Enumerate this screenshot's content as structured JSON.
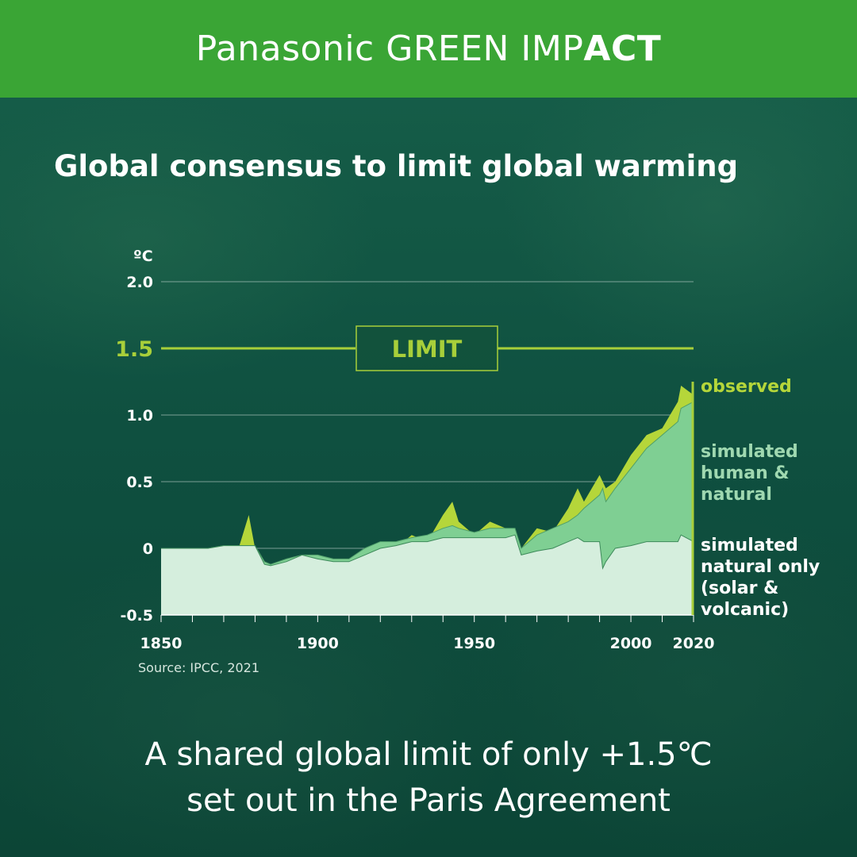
{
  "header": {
    "brand_light": "Panasonic GREEN IMP",
    "brand_bold": "ACT"
  },
  "title": "Global consensus to limit global warming",
  "source": "Source: IPCC, 2021",
  "caption": {
    "line1": "A shared global limit of only +1.5℃",
    "line2": "set out in the Paris Agreement"
  },
  "colors": {
    "header": "#3aa535",
    "observed": "#b5d63a",
    "human_natural": "#7fcf93",
    "natural_only": "#d5eedd",
    "limit": "#a8cf3a"
  },
  "chart_data": {
    "type": "area",
    "ylabel": "ºC",
    "ylim": [
      -0.5,
      2.0
    ],
    "xlim": [
      1850,
      2020
    ],
    "x_ticks": [
      "1850",
      "1900",
      "1950",
      "2000",
      "2020"
    ],
    "y_ticks": [
      "2.0",
      "1.5",
      "1.0",
      "0.5",
      "0",
      "-0.5"
    ],
    "grid": true,
    "limit": {
      "value": 1.5,
      "label": "LIMIT",
      "tick_label": "1.5"
    },
    "x": [
      1850,
      1855,
      1860,
      1865,
      1870,
      1875,
      1878,
      1880,
      1883,
      1885,
      1890,
      1895,
      1900,
      1905,
      1910,
      1915,
      1920,
      1925,
      1930,
      1935,
      1940,
      1943,
      1945,
      1950,
      1955,
      1960,
      1963,
      1965,
      1970,
      1975,
      1980,
      1983,
      1985,
      1990,
      1991,
      1992,
      1995,
      2000,
      2005,
      2010,
      2015,
      2016,
      2020
    ],
    "series": [
      {
        "name": "observed",
        "values": [
          -0.05,
          -0.02,
          -0.05,
          -0.03,
          0.0,
          0.02,
          0.25,
          0.0,
          -0.1,
          -0.15,
          -0.1,
          -0.05,
          -0.05,
          -0.15,
          -0.2,
          -0.1,
          -0.02,
          0.0,
          0.1,
          0.05,
          0.25,
          0.35,
          0.2,
          0.1,
          0.2,
          0.15,
          0.15,
          0.0,
          0.15,
          0.12,
          0.3,
          0.45,
          0.35,
          0.55,
          0.5,
          0.45,
          0.5,
          0.7,
          0.85,
          0.9,
          1.1,
          1.22,
          1.15
        ]
      },
      {
        "name": "simulated human & natural",
        "values": [
          0.0,
          0.0,
          0.0,
          0.0,
          0.02,
          0.02,
          0.02,
          0.02,
          -0.1,
          -0.12,
          -0.08,
          -0.05,
          -0.05,
          -0.08,
          -0.08,
          0.0,
          0.05,
          0.05,
          0.08,
          0.1,
          0.15,
          0.17,
          0.15,
          0.12,
          0.15,
          0.15,
          0.15,
          0.0,
          0.1,
          0.15,
          0.2,
          0.25,
          0.3,
          0.4,
          0.45,
          0.35,
          0.45,
          0.6,
          0.75,
          0.85,
          0.95,
          1.05,
          1.1
        ]
      },
      {
        "name": "simulated natural only (solar & volcanic)",
        "values": [
          0.0,
          0.0,
          0.0,
          0.0,
          0.02,
          0.02,
          0.02,
          0.02,
          -0.12,
          -0.13,
          -0.1,
          -0.05,
          -0.08,
          -0.1,
          -0.1,
          -0.05,
          0.0,
          0.02,
          0.05,
          0.05,
          0.08,
          0.08,
          0.08,
          0.08,
          0.08,
          0.08,
          0.1,
          -0.05,
          -0.02,
          0.0,
          0.05,
          0.08,
          0.05,
          0.05,
          -0.15,
          -0.1,
          0.0,
          0.02,
          0.05,
          0.05,
          0.05,
          0.1,
          0.05
        ]
      }
    ],
    "legend": [
      {
        "key": "observed",
        "lines": [
          "observed"
        ]
      },
      {
        "key": "human",
        "lines": [
          "simulated",
          "human &",
          "natural"
        ]
      },
      {
        "key": "natural",
        "lines": [
          "simulated",
          "natural only",
          "(solar &",
          "volcanic)"
        ]
      }
    ]
  }
}
